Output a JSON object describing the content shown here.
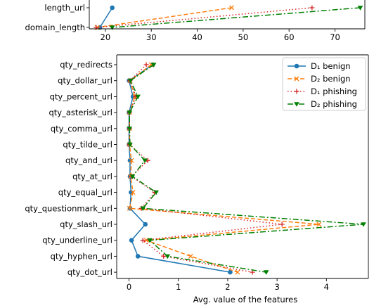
{
  "chart_data": [
    {
      "type": "line",
      "orientation": "horizontal",
      "categories": [
        "length_url",
        "domain_length"
      ],
      "xlim": [
        16.5,
        76.5
      ],
      "xticks": [
        20,
        30,
        40,
        50,
        60,
        70
      ],
      "grid": false,
      "clipped_top": true,
      "series": [
        {
          "name": "D₁ benign",
          "values": [
            21.5,
            18.8
          ]
        },
        {
          "name": "D₂ benign",
          "values": [
            47.5,
            18.2
          ]
        },
        {
          "name": "D₁ phishing",
          "values": [
            65.0,
            18.0
          ]
        },
        {
          "name": "D₂ phishing",
          "values": [
            75.5,
            21.5
          ]
        }
      ]
    },
    {
      "type": "line",
      "orientation": "horizontal",
      "categories": [
        "qty_redirects",
        "qty_dollar_url",
        "qty_percent_url",
        "qty_asterisk_url",
        "qty_comma_url",
        "qty_tilde_url",
        "qty_and_url",
        "qty_at_url",
        "qty_equal_url",
        "qty_questionmark_url",
        "qty_slash_url",
        "qty_underline_url",
        "qty_hyphen_url",
        "qty_dot_url"
      ],
      "xlim": [
        -0.25,
        4.85
      ],
      "xticks": [
        0,
        1,
        2,
        3,
        4
      ],
      "xlabel": "Avg. value of the features",
      "grid": false,
      "legend_position": "top-right",
      "series": [
        {
          "name": "D₁ benign",
          "color": "#1f77b4",
          "marker": "circle",
          "dash": "solid",
          "values": [
            0.48,
            0.0,
            0.08,
            0.0,
            0.0,
            0.0,
            0.02,
            0.02,
            0.04,
            0.02,
            0.33,
            0.05,
            0.18,
            2.05
          ]
        },
        {
          "name": "D₂ benign",
          "color": "#ff7f0e",
          "marker": "x",
          "dash": "dashed",
          "values": [
            0.45,
            0.02,
            0.12,
            0.01,
            0.01,
            0.01,
            0.05,
            0.03,
            0.08,
            0.01,
            3.85,
            0.35,
            1.25,
            2.2
          ]
        },
        {
          "name": "D₁ phishing",
          "color": "#d62728",
          "marker": "plus",
          "dash": "dotted",
          "values": [
            0.35,
            0.02,
            0.14,
            0.01,
            0.01,
            0.01,
            0.38,
            0.05,
            0.52,
            0.25,
            3.1,
            0.28,
            0.7,
            2.5
          ]
        },
        {
          "name": "D₂ phishing",
          "color": "#008000",
          "marker": "triangle-down",
          "dash": "dashdot",
          "values": [
            0.5,
            0.03,
            0.18,
            0.01,
            0.01,
            0.02,
            0.32,
            0.07,
            0.55,
            0.28,
            4.75,
            0.42,
            0.78,
            2.78
          ]
        }
      ]
    }
  ]
}
